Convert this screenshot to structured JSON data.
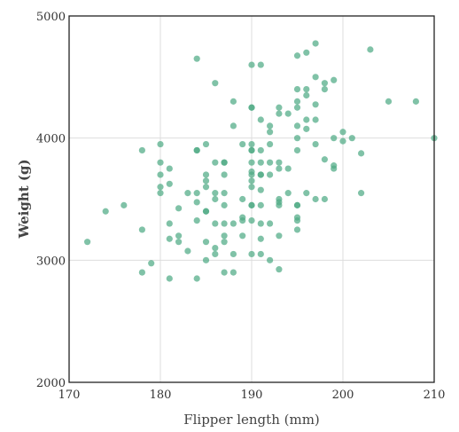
{
  "chart_data": {
    "type": "scatter",
    "title": "",
    "xlabel": "Flipper length (mm)",
    "ylabel": "Weight (g)",
    "xlim": [
      170,
      210
    ],
    "ylim": [
      2000,
      5000
    ],
    "xticks": [
      170,
      180,
      190,
      200,
      210
    ],
    "yticks": [
      2000,
      3000,
      4000,
      5000
    ],
    "grid": true,
    "colors": {
      "point": "#4fab85",
      "grid": "#dddddd",
      "frame": "#222222",
      "axis_text": "#333333"
    },
    "points": [
      [
        172,
        3150
      ],
      [
        174,
        3400
      ],
      [
        176,
        3450
      ],
      [
        178,
        3900
      ],
      [
        178,
        3250
      ],
      [
        178,
        2900
      ],
      [
        179,
        2975
      ],
      [
        180,
        3950
      ],
      [
        180,
        3800
      ],
      [
        180,
        3700
      ],
      [
        180,
        3600
      ],
      [
        180,
        3550
      ],
      [
        181,
        3750
      ],
      [
        181,
        3625
      ],
      [
        181,
        3300
      ],
      [
        181,
        3175
      ],
      [
        181,
        2850
      ],
      [
        182,
        3425
      ],
      [
        182,
        3200
      ],
      [
        182,
        3150
      ],
      [
        183,
        3550
      ],
      [
        183,
        3075
      ],
      [
        184,
        4650
      ],
      [
        184,
        3900
      ],
      [
        184,
        3900
      ],
      [
        184,
        3550
      ],
      [
        184,
        3475
      ],
      [
        184,
        3325
      ],
      [
        184,
        2850
      ],
      [
        185,
        3950
      ],
      [
        185,
        3700
      ],
      [
        185,
        3650
      ],
      [
        185,
        3600
      ],
      [
        185,
        3400
      ],
      [
        185,
        3400
      ],
      [
        185,
        3150
      ],
      [
        185,
        3000
      ],
      [
        186,
        4450
      ],
      [
        186,
        3800
      ],
      [
        186,
        3550
      ],
      [
        186,
        3500
      ],
      [
        186,
        3300
      ],
      [
        186,
        3100
      ],
      [
        186,
        3050
      ],
      [
        187,
        3800
      ],
      [
        187,
        3800
      ],
      [
        187,
        3700
      ],
      [
        187,
        3550
      ],
      [
        187,
        3450
      ],
      [
        187,
        3300
      ],
      [
        187,
        3200
      ],
      [
        187,
        3150
      ],
      [
        187,
        2900
      ],
      [
        188,
        4300
      ],
      [
        188,
        4100
      ],
      [
        188,
        3300
      ],
      [
        188,
        3050
      ],
      [
        188,
        2900
      ],
      [
        189,
        3950
      ],
      [
        189,
        3500
      ],
      [
        189,
        3350
      ],
      [
        189,
        3325
      ],
      [
        189,
        3200
      ],
      [
        190,
        4600
      ],
      [
        190,
        4250
      ],
      [
        190,
        4250
      ],
      [
        190,
        3950
      ],
      [
        190,
        3900
      ],
      [
        190,
        3900
      ],
      [
        190,
        3800
      ],
      [
        190,
        3725
      ],
      [
        190,
        3700
      ],
      [
        190,
        3650
      ],
      [
        190,
        3600
      ],
      [
        190,
        3450
      ],
      [
        190,
        3450
      ],
      [
        190,
        3325
      ],
      [
        190,
        3050
      ],
      [
        191,
        4600
      ],
      [
        191,
        4150
      ],
      [
        191,
        3900
      ],
      [
        191,
        3800
      ],
      [
        191,
        3700
      ],
      [
        191,
        3700
      ],
      [
        191,
        3575
      ],
      [
        191,
        3450
      ],
      [
        191,
        3300
      ],
      [
        191,
        3175
      ],
      [
        191,
        3050
      ],
      [
        192,
        4100
      ],
      [
        192,
        4050
      ],
      [
        192,
        3950
      ],
      [
        192,
        3800
      ],
      [
        192,
        3700
      ],
      [
        192,
        3300
      ],
      [
        192,
        3000
      ],
      [
        193,
        4250
      ],
      [
        193,
        4200
      ],
      [
        193,
        3800
      ],
      [
        193,
        3750
      ],
      [
        193,
        3500
      ],
      [
        193,
        3475
      ],
      [
        193,
        3450
      ],
      [
        193,
        3200
      ],
      [
        193,
        2925
      ],
      [
        194,
        4200
      ],
      [
        194,
        3750
      ],
      [
        194,
        3550
      ],
      [
        195,
        4675
      ],
      [
        195,
        4400
      ],
      [
        195,
        4300
      ],
      [
        195,
        4250
      ],
      [
        195,
        4100
      ],
      [
        195,
        4000
      ],
      [
        195,
        3900
      ],
      [
        195,
        3450
      ],
      [
        195,
        3450
      ],
      [
        195,
        3350
      ],
      [
        195,
        3325
      ],
      [
        195,
        3250
      ],
      [
        196,
        4700
      ],
      [
        196,
        4400
      ],
      [
        196,
        4350
      ],
      [
        196,
        4150
      ],
      [
        196,
        4075
      ],
      [
        196,
        3550
      ],
      [
        197,
        4775
      ],
      [
        197,
        4500
      ],
      [
        197,
        4275
      ],
      [
        197,
        4150
      ],
      [
        197,
        3950
      ],
      [
        197,
        3500
      ],
      [
        198,
        4450
      ],
      [
        198,
        4400
      ],
      [
        198,
        3825
      ],
      [
        198,
        3500
      ],
      [
        199,
        4475
      ],
      [
        199,
        4000
      ],
      [
        199,
        3775
      ],
      [
        199,
        3750
      ],
      [
        200,
        4050
      ],
      [
        200,
        3975
      ],
      [
        201,
        4000
      ],
      [
        202,
        3875
      ],
      [
        202,
        3550
      ],
      [
        203,
        4725
      ],
      [
        205,
        4300
      ],
      [
        208,
        4300
      ],
      [
        210,
        4000
      ]
    ]
  }
}
